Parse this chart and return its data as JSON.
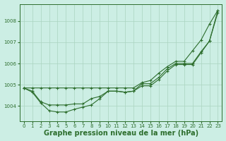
{
  "bg_color": "#cceee4",
  "grid_color": "#aad4c0",
  "line_color": "#2d6e2d",
  "xlabel": "Graphe pression niveau de la mer (hPa)",
  "xlabel_fontsize": 7,
  "ylim": [
    1003.3,
    1008.8
  ],
  "xlim": [
    -0.5,
    23.5
  ],
  "yticks": [
    1004,
    1005,
    1006,
    1007,
    1008
  ],
  "xticks": [
    0,
    1,
    2,
    3,
    4,
    5,
    6,
    7,
    8,
    9,
    10,
    11,
    12,
    13,
    14,
    15,
    16,
    17,
    18,
    19,
    20,
    21,
    22,
    23
  ],
  "line_top": [
    1004.85,
    1004.85,
    1004.85,
    1004.85,
    1004.85,
    1004.85,
    1004.85,
    1004.85,
    1004.85,
    1004.85,
    1004.85,
    1004.85,
    1004.85,
    1004.85,
    1005.1,
    1005.2,
    1005.55,
    1005.85,
    1006.1,
    1006.1,
    1006.6,
    1007.1,
    1007.85,
    1008.5
  ],
  "line_mid": [
    1004.85,
    1004.7,
    1004.2,
    1004.05,
    1004.05,
    1004.05,
    1004.1,
    1004.1,
    1004.35,
    1004.45,
    1004.7,
    1004.7,
    1004.65,
    1004.7,
    1004.95,
    1004.95,
    1005.25,
    1005.65,
    1005.95,
    1005.95,
    1005.95,
    1006.5,
    1007.05,
    1008.5
  ],
  "line_bot": [
    1004.85,
    1004.65,
    1004.15,
    1003.78,
    1003.72,
    1003.72,
    1003.85,
    1003.95,
    1004.05,
    1004.35,
    1004.7,
    1004.7,
    1004.65,
    1004.7,
    1005.05,
    1005.05,
    1005.35,
    1005.75,
    1006.0,
    1006.0,
    1006.0,
    1006.55,
    1007.05,
    1008.4
  ],
  "marker_size": 2.5
}
